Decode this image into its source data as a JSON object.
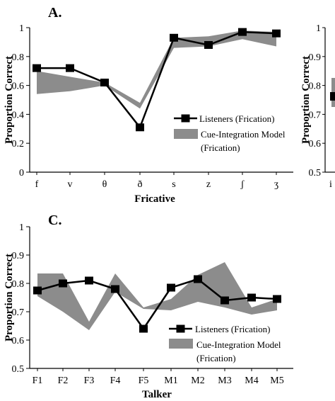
{
  "chart_data": [
    {
      "panel": "A.",
      "type": "line",
      "xlabel": "Fricative",
      "ylabel": "Proportion Correct",
      "ylim": [
        0,
        1
      ],
      "yticks": [
        "0",
        "0.2",
        "0.4",
        "0.6",
        "0.8",
        "1"
      ],
      "categories": [
        "f",
        "v",
        "θ",
        "ð",
        "s",
        "z",
        "ʃ",
        "ʒ"
      ],
      "series": [
        {
          "name": "Listeners (Frication)",
          "style": "line-square-markers",
          "values": [
            0.72,
            0.72,
            0.62,
            0.31,
            0.93,
            0.88,
            0.97,
            0.96
          ]
        },
        {
          "name": "Cue-Integration Model (Frication)",
          "style": "band",
          "lower": [
            0.54,
            0.56,
            0.6,
            0.44,
            0.86,
            0.87,
            0.92,
            0.87
          ],
          "upper": [
            0.7,
            0.66,
            0.62,
            0.48,
            0.93,
            0.94,
            0.98,
            0.97
          ]
        }
      ],
      "legend": "right",
      "colors": {
        "line": "#000000",
        "band": "#8c8c8c"
      }
    },
    {
      "panel": "C.",
      "type": "line",
      "xlabel": "Talker",
      "ylabel": "Proportion Correct",
      "ylim": [
        0.5,
        1
      ],
      "yticks": [
        "0.5",
        "0.6",
        "0.7",
        "0.8",
        "0.9",
        "1"
      ],
      "categories": [
        "F1",
        "F2",
        "F3",
        "F4",
        "F5",
        "M1",
        "M2",
        "M3",
        "M4",
        "M5"
      ],
      "series": [
        {
          "name": "Listeners (Frication)",
          "style": "line-square-markers",
          "values": [
            0.775,
            0.8,
            0.81,
            0.78,
            0.64,
            0.785,
            0.815,
            0.74,
            0.75,
            0.745
          ]
        },
        {
          "name": "Cue-Integration Model (Frication)",
          "style": "band",
          "lower": [
            0.755,
            0.7,
            0.635,
            0.77,
            0.71,
            0.705,
            0.735,
            0.715,
            0.69,
            0.705
          ],
          "upper": [
            0.835,
            0.835,
            0.665,
            0.835,
            0.715,
            0.745,
            0.83,
            0.875,
            0.715,
            0.745
          ]
        }
      ],
      "legend": "bottom-right",
      "colors": {
        "line": "#000000",
        "band": "#8c8c8c"
      }
    },
    {
      "panel": "partial (cropped, right edge)",
      "type": "line",
      "ylabel": "Proportion Correct",
      "ylim": [
        0.5,
        1
      ],
      "yticks": [
        "0.5",
        "0.6",
        "0.7",
        "0.8",
        "0.9",
        "1"
      ],
      "categories": [
        "i"
      ],
      "series": [
        {
          "name": "",
          "style": "line-square-markers",
          "values": [
            0.76
          ]
        },
        {
          "name": "",
          "style": "band",
          "lower": [
            0.7
          ],
          "upper": [
            0.83
          ]
        }
      ]
    }
  ]
}
